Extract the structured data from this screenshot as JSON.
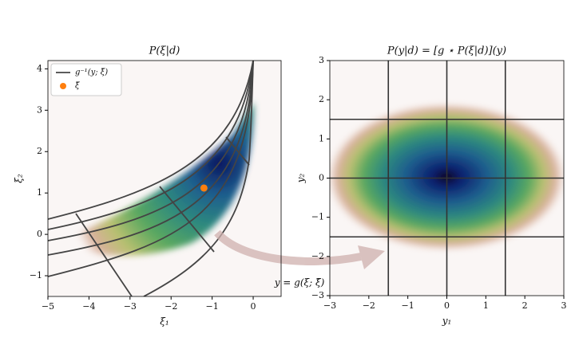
{
  "chart_data": [
    {
      "type": "heatmap",
      "title": "P(ξ|d)",
      "xlabel": "ξ₁",
      "ylabel": "ξ₂",
      "xlim": [
        -5,
        0.68
      ],
      "ylim": [
        -1.5,
        4.2
      ],
      "xticks": [
        {
          "value": -5,
          "label": "−5"
        },
        {
          "value": -4,
          "label": "−4"
        },
        {
          "value": -3,
          "label": "−3"
        },
        {
          "value": -2,
          "label": "−2"
        },
        {
          "value": -1,
          "label": "−1"
        },
        0
      ],
      "yticks": [
        {
          "value": -1,
          "label": "−1"
        },
        0,
        1,
        2,
        3,
        4
      ],
      "legend": "upper left",
      "series": [
        {
          "name": "g⁻¹(y; ξ̄)",
          "type": "line",
          "color": "#444444"
        },
        {
          "name": "ξ̄",
          "type": "scatter",
          "color": "#ff7f0e",
          "x": [
            -1.2
          ],
          "y": [
            1.12
          ]
        }
      ]
    },
    {
      "type": "heatmap",
      "title": "P(y|d) = [g ⋆ P(ξ|d)](y)",
      "xlabel": "y₁",
      "ylabel": "y₂",
      "xlim": [
        -3,
        3
      ],
      "ylim": [
        -3,
        3
      ],
      "xticks": [
        {
          "value": -3,
          "label": "−3"
        },
        {
          "value": -2,
          "label": "−2"
        },
        {
          "value": -1,
          "label": "−1"
        },
        0,
        1,
        2,
        3
      ],
      "yticks": [
        {
          "value": -3,
          "label": "−3"
        },
        {
          "value": -2,
          "label": "−2"
        },
        {
          "value": -1,
          "label": "−1"
        },
        0,
        1,
        2,
        3
      ],
      "grid_lines": [
        {
          "value": -1.5,
          "label": "−1.5"
        },
        0,
        1.5
      ],
      "grid_color": "#333333",
      "annotation": "y = g(ξ; ξ̄)"
    }
  ]
}
